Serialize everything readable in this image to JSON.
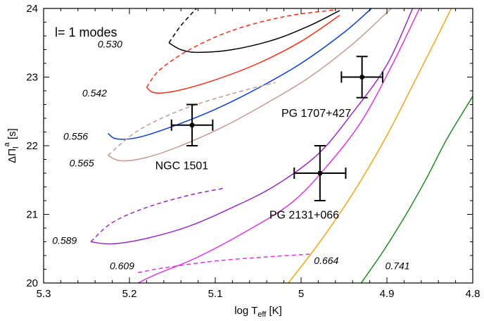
{
  "chart_data": {
    "type": "line",
    "title": "",
    "legend_text": "l= 1 modes",
    "xlabel": {
      "main": "log T",
      "sub": "eff",
      "unit": " [K]"
    },
    "ylabel": {
      "main": "ΔΠ",
      "sub": "l",
      "sup": "a",
      "unit": " [s]"
    },
    "xlim": [
      5.3,
      4.8
    ],
    "ylim": [
      20,
      24
    ],
    "x_ticks": [
      "5.3",
      "5.2",
      "5.1",
      "5",
      "4.9",
      "4.8"
    ],
    "y_ticks": [
      "20",
      "21",
      "22",
      "23",
      "24"
    ],
    "grid": false,
    "series": [
      {
        "name": "0.530",
        "color": "#000000",
        "label_at": [
          5.237,
          23.48
        ],
        "dashed": [
          [
            5.154,
            23.5
          ],
          [
            5.14,
            23.75
          ],
          [
            5.122,
            24.0
          ]
        ],
        "solid": [
          [
            5.154,
            23.5
          ],
          [
            5.14,
            23.4
          ],
          [
            5.12,
            23.36
          ],
          [
            5.08,
            23.4
          ],
          [
            5.03,
            23.55
          ],
          [
            4.99,
            23.75
          ],
          [
            4.955,
            23.97
          ]
        ]
      },
      {
        "name": "0.542",
        "color": "#ff2a0f",
        "label_at": [
          5.255,
          22.77
        ],
        "dashed": [
          [
            5.18,
            22.85
          ],
          [
            5.165,
            23.1
          ],
          [
            5.13,
            23.4
          ],
          [
            5.08,
            23.68
          ],
          [
            5.02,
            23.88
          ],
          [
            4.96,
            23.98
          ]
        ],
        "solid": [
          [
            5.18,
            22.85
          ],
          [
            5.17,
            22.77
          ],
          [
            5.145,
            22.8
          ],
          [
            5.1,
            22.96
          ],
          [
            5.05,
            23.2
          ],
          [
            5.0,
            23.52
          ],
          [
            4.955,
            23.9
          ]
        ]
      },
      {
        "name": "0.556",
        "color": "#0a3cdc",
        "label_at": [
          5.277,
          22.14
        ],
        "dashed": [],
        "solid": [
          [
            5.225,
            22.18
          ],
          [
            5.215,
            22.1
          ],
          [
            5.19,
            22.12
          ],
          [
            5.15,
            22.28
          ],
          [
            5.1,
            22.53
          ],
          [
            5.05,
            22.84
          ],
          [
            5.0,
            23.2
          ],
          [
            4.95,
            23.65
          ],
          [
            4.918,
            24.0
          ]
        ]
      },
      {
        "name": "0.565",
        "color": "#c49a92",
        "label_at": [
          5.27,
          21.75
        ],
        "dashed": [
          [
            5.225,
            21.86
          ],
          [
            5.19,
            22.22
          ],
          [
            5.14,
            22.52
          ],
          [
            5.08,
            22.76
          ],
          [
            5.03,
            22.92
          ]
        ],
        "solid": [
          [
            5.225,
            21.86
          ],
          [
            5.21,
            21.78
          ],
          [
            5.18,
            21.83
          ],
          [
            5.14,
            22.0
          ],
          [
            5.09,
            22.28
          ],
          [
            5.04,
            22.62
          ],
          [
            4.99,
            23.0
          ],
          [
            4.94,
            23.48
          ],
          [
            4.895,
            24.0
          ]
        ]
      },
      {
        "name": "0.589",
        "color": "#9a28c8",
        "label_at": [
          5.29,
          20.62
        ],
        "dashed": [
          [
            5.245,
            20.6
          ],
          [
            5.22,
            20.88
          ],
          [
            5.18,
            21.1
          ],
          [
            5.13,
            21.28
          ],
          [
            5.09,
            21.38
          ]
        ],
        "solid": [
          [
            5.245,
            20.6
          ],
          [
            5.22,
            20.57
          ],
          [
            5.18,
            20.65
          ],
          [
            5.13,
            20.83
          ],
          [
            5.08,
            21.1
          ],
          [
            5.03,
            21.42
          ],
          [
            4.98,
            21.88
          ],
          [
            4.94,
            22.48
          ],
          [
            4.9,
            23.18
          ],
          [
            4.87,
            24.0
          ]
        ]
      },
      {
        "name": "0.609",
        "color": "#e033e6",
        "label_at": [
          5.223,
          20.25
        ],
        "dashed": [
          [
            5.19,
            20.15
          ],
          [
            5.16,
            20.22
          ],
          [
            5.1,
            20.32
          ],
          [
            5.04,
            20.38
          ],
          [
            4.99,
            20.42
          ]
        ],
        "solid": [
          [
            5.19,
            20.0
          ],
          [
            5.17,
            20.12
          ],
          [
            5.12,
            20.38
          ],
          [
            5.06,
            20.78
          ],
          [
            5.01,
            21.18
          ],
          [
            4.97,
            21.7
          ],
          [
            4.93,
            22.35
          ],
          [
            4.895,
            23.15
          ],
          [
            4.862,
            24.0
          ]
        ]
      },
      {
        "name": "0.664",
        "color": "#f2a610",
        "label_at": [
          4.985,
          20.33
        ],
        "dashed": [],
        "solid": [
          [
            5.015,
            20.0
          ],
          [
            4.99,
            20.4
          ],
          [
            4.96,
            20.92
          ],
          [
            4.93,
            21.5
          ],
          [
            4.9,
            22.15
          ],
          [
            4.87,
            22.88
          ],
          [
            4.84,
            23.62
          ],
          [
            4.825,
            24.0
          ]
        ]
      },
      {
        "name": "0.741",
        "color": "#1c8a1c",
        "label_at": [
          4.902,
          20.25
        ],
        "dashed": [],
        "solid": [
          [
            4.93,
            20.0
          ],
          [
            4.905,
            20.45
          ],
          [
            4.88,
            20.95
          ],
          [
            4.855,
            21.5
          ],
          [
            4.83,
            22.1
          ],
          [
            4.8,
            22.72
          ]
        ]
      }
    ],
    "stars": [
      {
        "name": "NGC 1501",
        "x": 5.127,
        "y": 22.3,
        "xerr": 0.024,
        "yerr": 0.3,
        "label_at": [
          5.17,
          21.72
        ]
      },
      {
        "name": "PG 1707+427",
        "x": 4.929,
        "y": 23.0,
        "xerr": 0.024,
        "yerr": 0.3,
        "label_at": [
          5.023,
          22.48
        ]
      },
      {
        "name": "PG 2131+066",
        "x": 4.978,
        "y": 21.6,
        "xerr": 0.03,
        "yerr": 0.4,
        "label_at": [
          5.037,
          21.0
        ]
      }
    ]
  }
}
